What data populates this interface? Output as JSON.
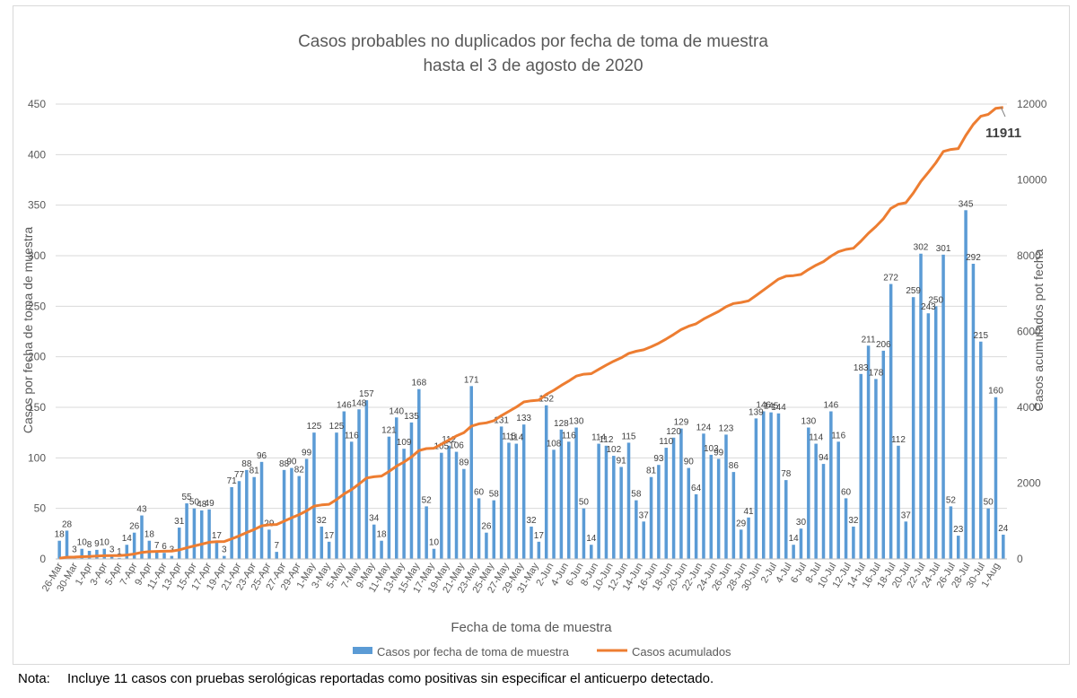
{
  "chart_data": {
    "type": "bar+line",
    "title_lines": [
      "Casos probables no duplicados por fecha de toma de muestra",
      "hasta el 3 de agosto de 2020"
    ],
    "xlabel": "Fecha de toma de muestra",
    "ylabel_left": "Casos por fecha de toma de muestra",
    "ylabel_right": "Casos acumulados pot fecha",
    "ylim_left": [
      0,
      450
    ],
    "yticks_left": [
      0,
      50,
      100,
      150,
      200,
      250,
      300,
      350,
      400,
      450
    ],
    "ylim_right": [
      0,
      12000
    ],
    "yticks_right": [
      0,
      2000,
      4000,
      6000,
      8000,
      10000,
      12000
    ],
    "legend_position": "bottom",
    "x_tick_labels": [
      "26-Mar",
      "30-Mar",
      "1-Apr",
      "3-Apr",
      "5-Apr",
      "7-Apr",
      "9-Apr",
      "11-Apr",
      "13-Apr",
      "15-Apr",
      "17-Apr",
      "19-Apr",
      "21-Apr",
      "23-Apr",
      "25-Apr",
      "27-Apr",
      "29-Apr",
      "1-May",
      "3-May",
      "5-May",
      "7-May",
      "9-May",
      "11-May",
      "13-May",
      "15-May",
      "17-May",
      "19-May",
      "21-May",
      "23-May",
      "25-May",
      "27-May",
      "29-May",
      "31-May",
      "2-Jun",
      "4-Jun",
      "6-Jun",
      "8-Jun",
      "10-Jun",
      "12-Jun",
      "14-Jun",
      "16-Jun",
      "18-Jun",
      "20-Jun",
      "22-Jun",
      "24-Jun",
      "26-Jun",
      "28-Jun",
      "30-Jun",
      "2-Jul",
      "4-Jul",
      "6-Jul",
      "8-Jul",
      "10-Jul",
      "12-Jul",
      "14-Jul",
      "16-Jul",
      "18-Jul",
      "20-Jul",
      "22-Jul",
      "24-Jul",
      "26-Jul",
      "28-Jul",
      "30-Jul",
      "1-Aug"
    ],
    "series": [
      {
        "name": "Casos por fecha de toma de muestra",
        "kind": "bar",
        "axis": "left",
        "color": "#5b9bd5",
        "values": [
          18,
          28,
          3,
          10,
          8,
          9,
          10,
          3,
          1,
          14,
          26,
          43,
          18,
          7,
          6,
          3,
          31,
          55,
          50,
          48,
          49,
          17,
          3,
          71,
          77,
          88,
          81,
          96,
          29,
          7,
          88,
          90,
          82,
          99,
          125,
          32,
          17,
          125,
          146,
          116,
          148,
          157,
          34,
          18,
          121,
          140,
          109,
          135,
          168,
          52,
          10,
          105,
          112,
          106,
          89,
          171,
          60,
          26,
          58,
          131,
          115,
          114,
          133,
          32,
          17,
          152,
          108,
          128,
          116,
          130,
          50,
          14,
          114,
          112,
          102,
          91,
          115,
          58,
          37,
          81,
          93,
          110,
          120,
          129,
          90,
          64,
          124,
          103,
          99,
          123,
          86,
          29,
          41,
          139,
          146,
          145,
          144,
          78,
          14,
          30,
          130,
          114,
          94,
          146,
          116,
          60,
          32,
          183,
          211,
          178,
          206,
          272,
          112,
          37,
          259,
          302,
          243,
          250,
          301,
          52,
          23,
          345,
          292,
          215,
          50,
          160,
          24
        ]
      },
      {
        "name": "Casos acumulados",
        "kind": "line",
        "axis": "right",
        "color": "#ed7d31",
        "end_label": "11911"
      }
    ]
  },
  "note": {
    "label": "Nota:",
    "text": "Incluye 11 casos con pruebas serológicas reportadas como positivas sin especificar el anticuerpo detectado."
  }
}
